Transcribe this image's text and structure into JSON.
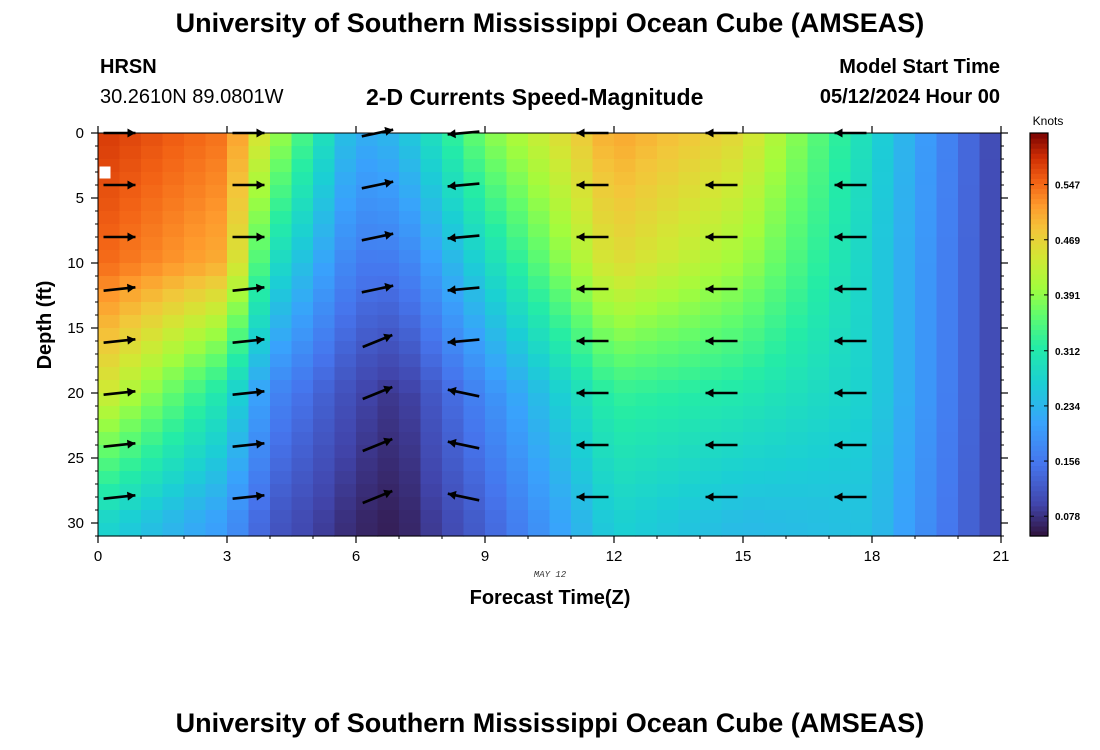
{
  "header": {
    "title": "University of Southern Mississippi Ocean Cube (AMSEAS)",
    "station": "HRSN",
    "coords": "30.2610N  89.0801W",
    "subtitle": "2-D Currents Speed-Magnitude",
    "start_label": "Model Start Time",
    "start_value": "05/12/2024 Hour 00"
  },
  "footer": {
    "title": "University of Southern Mississippi Ocean Cube (AMSEAS)"
  },
  "chart_data": {
    "type": "heatmap",
    "title": "2-D Currents Speed-Magnitude",
    "xlabel": "Forecast Time(Z)",
    "ylabel": "Depth (ft)",
    "x_sublabel": "MAY 12",
    "xlim": [
      0,
      21
    ],
    "ylim": [
      0,
      31
    ],
    "x_ticks": [
      0,
      3,
      6,
      9,
      12,
      15,
      18,
      21
    ],
    "y_ticks": [
      0,
      5,
      10,
      15,
      20,
      25,
      30
    ],
    "colorbar": {
      "label": "Knots",
      "range": [
        0.05,
        0.62
      ],
      "ticks": [
        "0.078",
        "0.156",
        "0.234",
        "0.312",
        "0.391",
        "0.469",
        "0.547"
      ],
      "tick_values": [
        0.078,
        0.156,
        0.234,
        0.312,
        0.391,
        0.469,
        0.547
      ]
    },
    "key_speed_profiles": {
      "depths_ft": [
        0,
        10,
        20,
        30
      ],
      "hour_0": [
        0.58,
        0.55,
        0.45,
        0.28
      ],
      "hour_3": [
        0.54,
        0.5,
        0.3,
        0.2
      ],
      "hour_4": [
        0.42,
        0.3,
        0.18,
        0.12
      ],
      "hour_6": [
        0.22,
        0.16,
        0.1,
        0.07
      ],
      "hour_7": [
        0.24,
        0.16,
        0.08,
        0.06
      ],
      "hour_9": [
        0.38,
        0.28,
        0.18,
        0.13
      ],
      "hour_12": [
        0.51,
        0.46,
        0.33,
        0.27
      ],
      "hour_15": [
        0.46,
        0.4,
        0.31,
        0.24
      ],
      "hour_18": [
        0.28,
        0.27,
        0.27,
        0.25
      ],
      "hour_21": [
        0.09,
        0.09,
        0.09,
        0.09
      ]
    },
    "vector_times": [
      0.5,
      3.5,
      6.5,
      8.5,
      11.5,
      14.5,
      17.5
    ],
    "vector_depths": [
      0,
      4,
      8,
      12,
      16,
      20,
      24,
      28
    ],
    "vector_direction": [
      "east",
      "east",
      "east-northeast",
      "west",
      "west",
      "west",
      "west"
    ]
  }
}
